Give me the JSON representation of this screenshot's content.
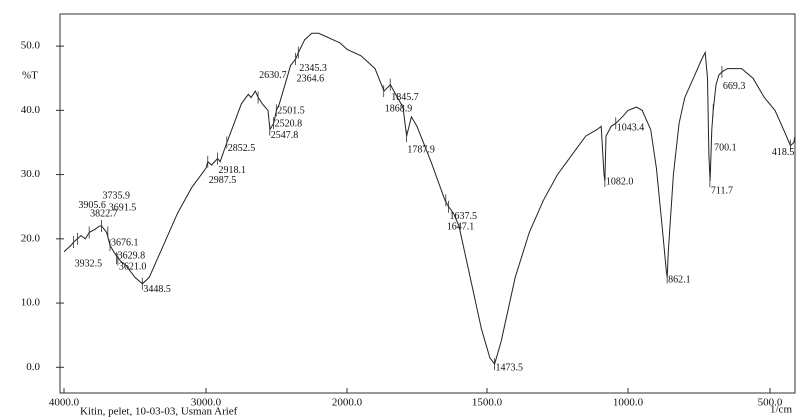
{
  "chart_data": {
    "type": "line",
    "y_label": "%T",
    "x_label": "1/cm",
    "footer": "Kitin, pelet, 10-03-03, Usman Arief",
    "xlim": [
      4000,
      400
    ],
    "ylim": [
      -4,
      55
    ],
    "xticks": [
      {
        "value": 4000,
        "label": "4000.0"
      },
      {
        "value": 3000,
        "label": "3000.0"
      },
      {
        "value": 2000,
        "label": "2000.0"
      },
      {
        "value": 1500,
        "label": "1500.0"
      },
      {
        "value": 1000,
        "label": "1000.0"
      },
      {
        "value": 500,
        "label": "500.0"
      }
    ],
    "yticks": [
      {
        "value": 0,
        "label": "0.0"
      },
      {
        "value": 10,
        "label": "10.0"
      },
      {
        "value": 20,
        "label": "20.0"
      },
      {
        "value": 30,
        "label": "30.0"
      },
      {
        "value": 40,
        "label": "40.0"
      },
      {
        "value": 50,
        "label": "50.0"
      }
    ],
    "series": [
      {
        "color": "#222222",
        "x": [
          4000,
          3950,
          3932,
          3905,
          3880,
          3850,
          3822,
          3780,
          3750,
          3735,
          3700,
          3676,
          3650,
          3620,
          3600,
          3570,
          3500,
          3448,
          3400,
          3300,
          3200,
          3100,
          3000,
          2987,
          2960,
          2918,
          2900,
          2852,
          2800,
          2750,
          2700,
          2680,
          2650,
          2630,
          2600,
          2560,
          2547,
          2520,
          2501,
          2480,
          2440,
          2400,
          2364,
          2345,
          2300,
          2250,
          2200,
          2150,
          2100,
          2050,
          2000,
          1950,
          1900,
          1868,
          1845,
          1820,
          1800,
          1787,
          1770,
          1750,
          1700,
          1650,
          1637,
          1620,
          1600,
          1560,
          1520,
          1490,
          1473,
          1450,
          1400,
          1350,
          1300,
          1250,
          1200,
          1150,
          1110,
          1095,
          1085,
          1082,
          1078,
          1060,
          1043,
          1020,
          1000,
          970,
          950,
          920,
          900,
          880,
          865,
          862,
          858,
          840,
          820,
          800,
          760,
          740,
          728,
          720,
          715,
          711,
          705,
          700,
          690,
          680,
          669,
          650,
          600,
          560,
          520,
          480,
          440,
          418,
          405,
          400
        ],
        "values": [
          18,
          19,
          19.5,
          20,
          20.5,
          20,
          21,
          21.5,
          22,
          22,
          21,
          19,
          18,
          17,
          16.5,
          16,
          14,
          13,
          14,
          19,
          24,
          28,
          31,
          32,
          31.5,
          32.5,
          32,
          35,
          38,
          41,
          42.5,
          42,
          43,
          42,
          41,
          40,
          37,
          38,
          40,
          41,
          44,
          47,
          48,
          49,
          51,
          52,
          52,
          51.5,
          51,
          50.5,
          49.5,
          48.5,
          46.5,
          43,
          44,
          42,
          40.5,
          36,
          39,
          37.5,
          32,
          26,
          25,
          24,
          22,
          14,
          6,
          1.5,
          0.5,
          4,
          14,
          21,
          26,
          30,
          33,
          36,
          37,
          37.5,
          30,
          29,
          36,
          37.5,
          38,
          39,
          40,
          40.5,
          40,
          37,
          31,
          22,
          15,
          14,
          18,
          30,
          38,
          42,
          46,
          48,
          49,
          45,
          33,
          29,
          37,
          40,
          44,
          45.5,
          46,
          46.5,
          46.5,
          45,
          42,
          40,
          36.5,
          34.5,
          35,
          36
        ]
      }
    ],
    "peaks": {
      "x": [
        3905.6,
        3822.7,
        3735.9,
        3691.5,
        3676.1,
        3932.5,
        3629.8,
        3621.0,
        3448.5,
        2987.5,
        2918.1,
        2852.5,
        2630.7,
        2547.8,
        2520.8,
        2501.5,
        2364.6,
        2345.3,
        1868.9,
        1845.7,
        1787.9,
        1637.5,
        1647.1,
        1473.5,
        1082.0,
        1043.4,
        862.1,
        711.7,
        700.1,
        669.3,
        418.5
      ],
      "x_labels": [
        "3905.6",
        "3822.7",
        "3735.9",
        "3691.5",
        "3676.1",
        "3932.5",
        "3629.8",
        "3621.0",
        "3448.5",
        "2987.5",
        "2918.1",
        "2852.5",
        "2630.7",
        "2547.8",
        "2520.8",
        "2501.5",
        "2364.6",
        "2345.3",
        "1868.9",
        "1845.7",
        "1787.9",
        "1637.5",
        "1647.1",
        "1473.5",
        "1082.0",
        "1043.4",
        "862.1",
        "711.7",
        "700.1",
        "669.3",
        "418.5"
      ],
      "y": [
        20,
        21,
        22,
        21,
        19,
        19.5,
        17,
        16.8,
        13,
        32,
        32.5,
        35,
        42,
        37,
        38,
        40,
        48,
        49,
        43,
        44,
        36,
        25,
        26,
        0.5,
        29,
        38,
        14,
        29,
        40,
        46,
        34.5
      ]
    }
  }
}
